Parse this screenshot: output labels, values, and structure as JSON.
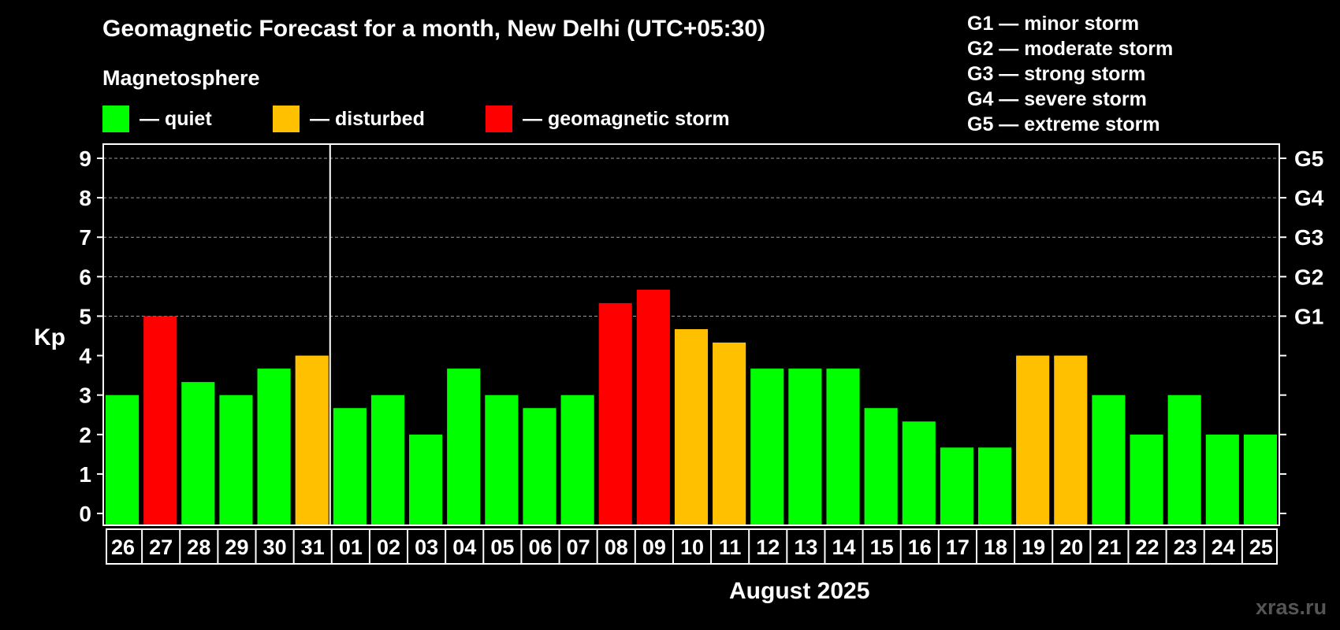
{
  "title": "Geomagnetic Forecast for a month, New Delhi (UTC+05:30)",
  "subtitle": "Magnetosphere",
  "legend": [
    {
      "label": "— quiet",
      "color": "#00ff00"
    },
    {
      "label": "— disturbed",
      "color": "#ffc000"
    },
    {
      "label": "— geomagnetic storm",
      "color": "#ff0000"
    }
  ],
  "storm_scale": [
    "G1 — minor storm",
    "G2 — moderate storm",
    "G3 — strong storm",
    "G4 — severe storm",
    "G5 — extreme storm"
  ],
  "month_label": "August 2025",
  "watermark": "xras.ru",
  "chart_data": {
    "type": "bar",
    "ylabel": "Kp",
    "xlabel": "August 2025",
    "ylim": [
      0,
      9
    ],
    "grid": true,
    "y_ticks": [
      "0",
      "1",
      "2",
      "3",
      "4",
      "5",
      "6",
      "7",
      "8",
      "9"
    ],
    "right_axis_labels": [
      {
        "value": 5,
        "label": "G1"
      },
      {
        "value": 6,
        "label": "G2"
      },
      {
        "value": 7,
        "label": "G3"
      },
      {
        "value": 8,
        "label": "G4"
      },
      {
        "value": 9,
        "label": "G5"
      }
    ],
    "month_boundary_after_index": 5,
    "categories": [
      "26",
      "27",
      "28",
      "29",
      "30",
      "31",
      "01",
      "02",
      "03",
      "04",
      "05",
      "06",
      "07",
      "08",
      "09",
      "10",
      "11",
      "12",
      "13",
      "14",
      "15",
      "16",
      "17",
      "18",
      "19",
      "20",
      "21",
      "22",
      "23",
      "24",
      "25"
    ],
    "values": [
      3,
      5,
      3.33,
      3,
      3.67,
      4,
      2.67,
      3,
      2,
      3.67,
      3,
      2.67,
      3,
      5.33,
      5.67,
      4.67,
      4.33,
      3.67,
      3.67,
      3.67,
      2.67,
      2.33,
      1.67,
      1.67,
      4,
      4,
      3,
      2,
      3,
      2,
      2
    ],
    "levels": [
      "quiet",
      "storm",
      "quiet",
      "quiet",
      "quiet",
      "disturbed",
      "quiet",
      "quiet",
      "quiet",
      "quiet",
      "quiet",
      "quiet",
      "quiet",
      "storm",
      "storm",
      "disturbed",
      "disturbed",
      "quiet",
      "quiet",
      "quiet",
      "quiet",
      "quiet",
      "quiet",
      "quiet",
      "disturbed",
      "disturbed",
      "quiet",
      "quiet",
      "quiet",
      "quiet",
      "quiet"
    ],
    "colors": {
      "quiet": "#00ff00",
      "disturbed": "#ffc000",
      "storm": "#ff0000"
    }
  }
}
